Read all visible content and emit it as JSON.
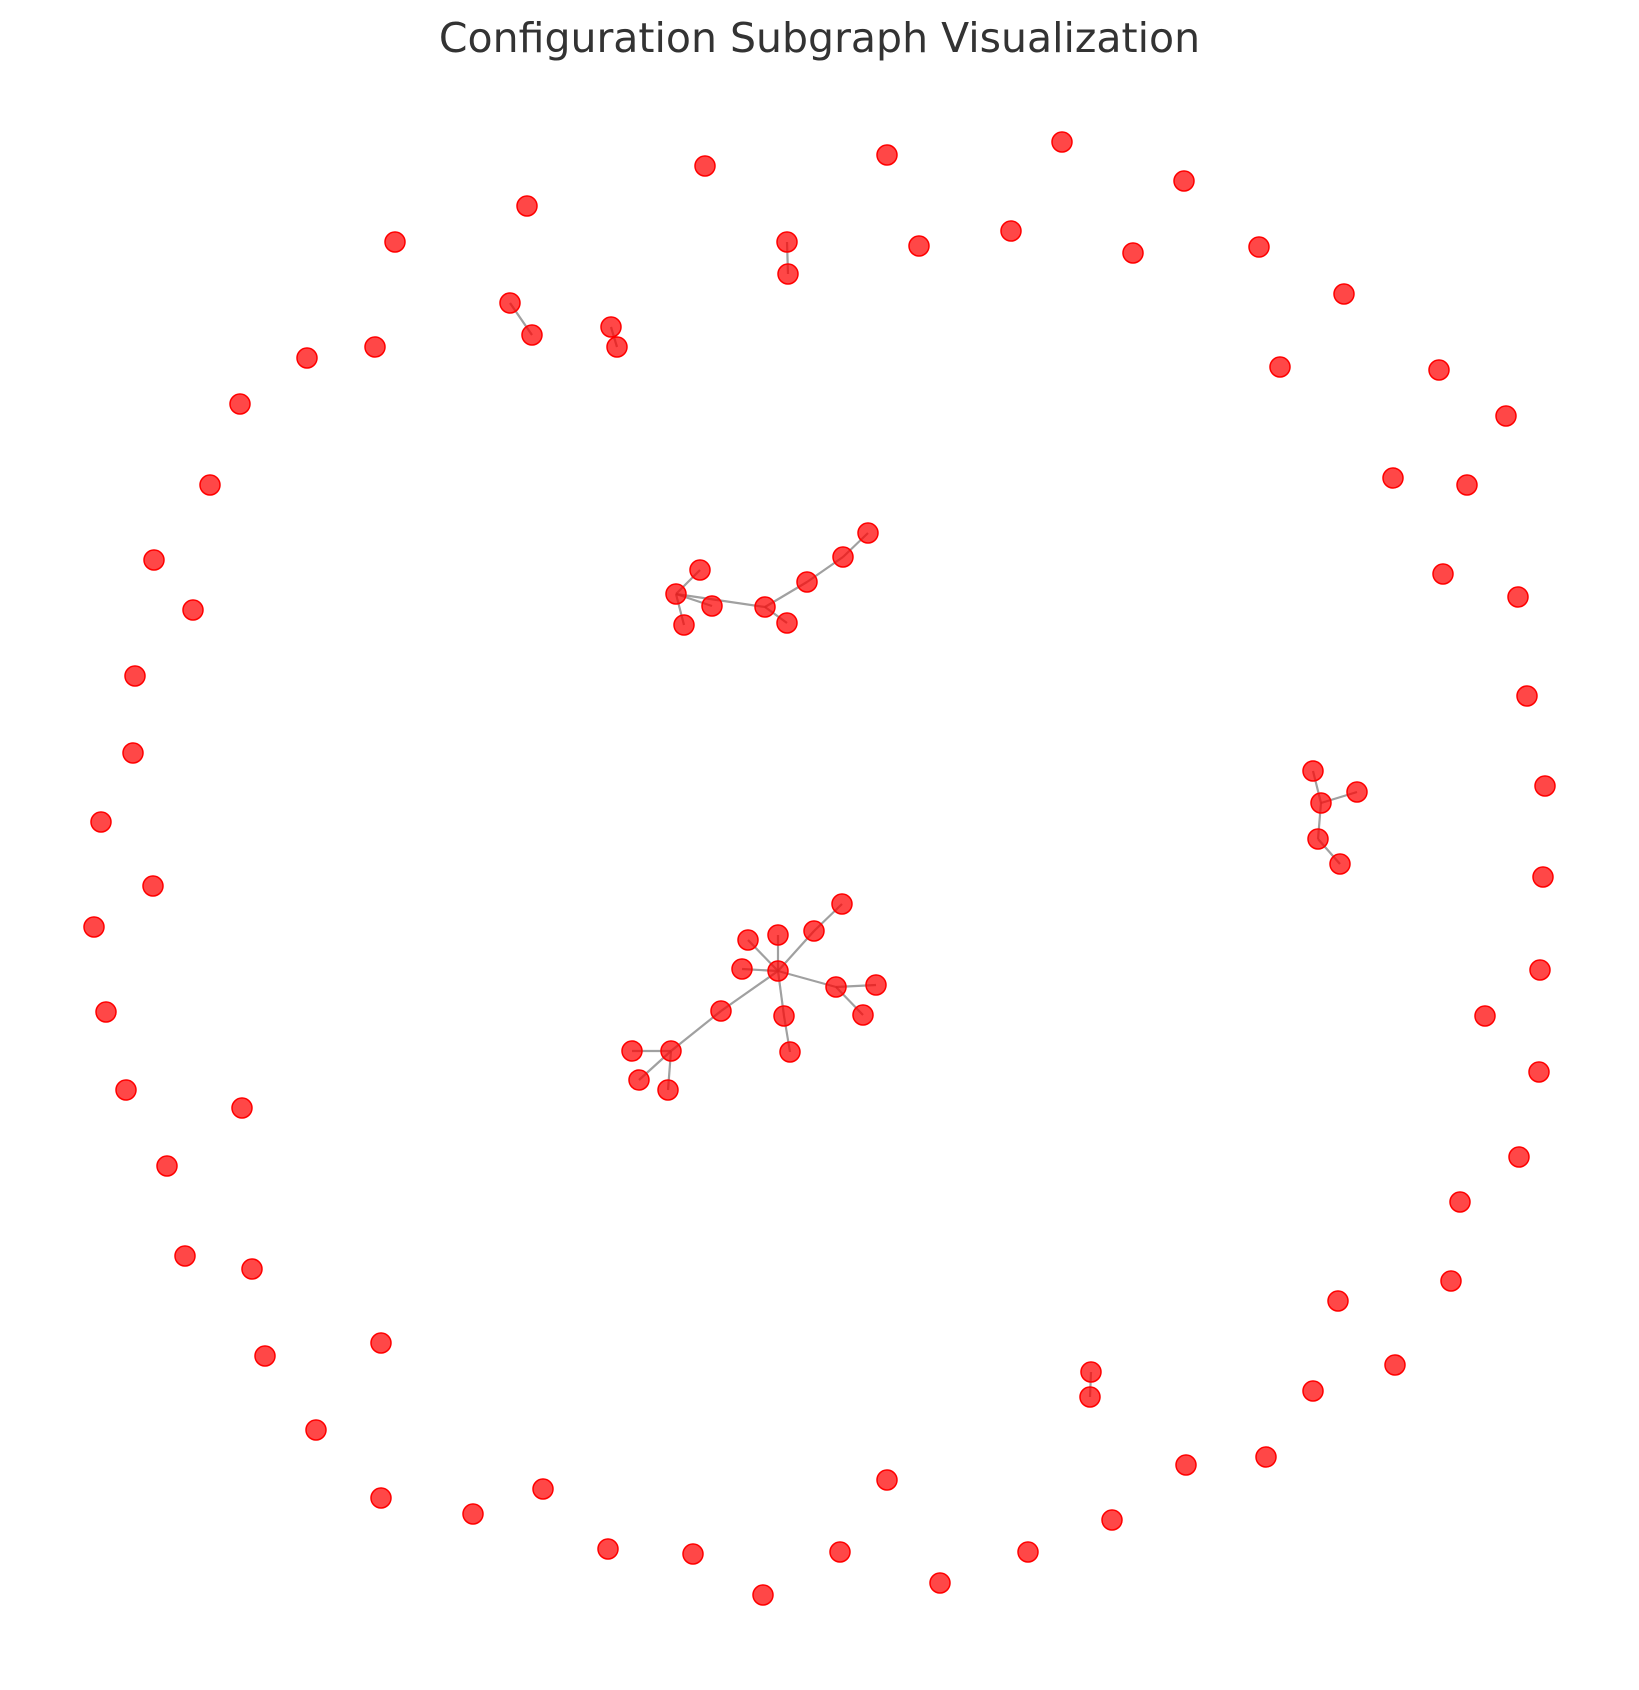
{
  "title": "Configuration Subgraph Visualization",
  "colors": {
    "node": "#ff0000",
    "edge": "#808080",
    "title": "#333333"
  }
}
